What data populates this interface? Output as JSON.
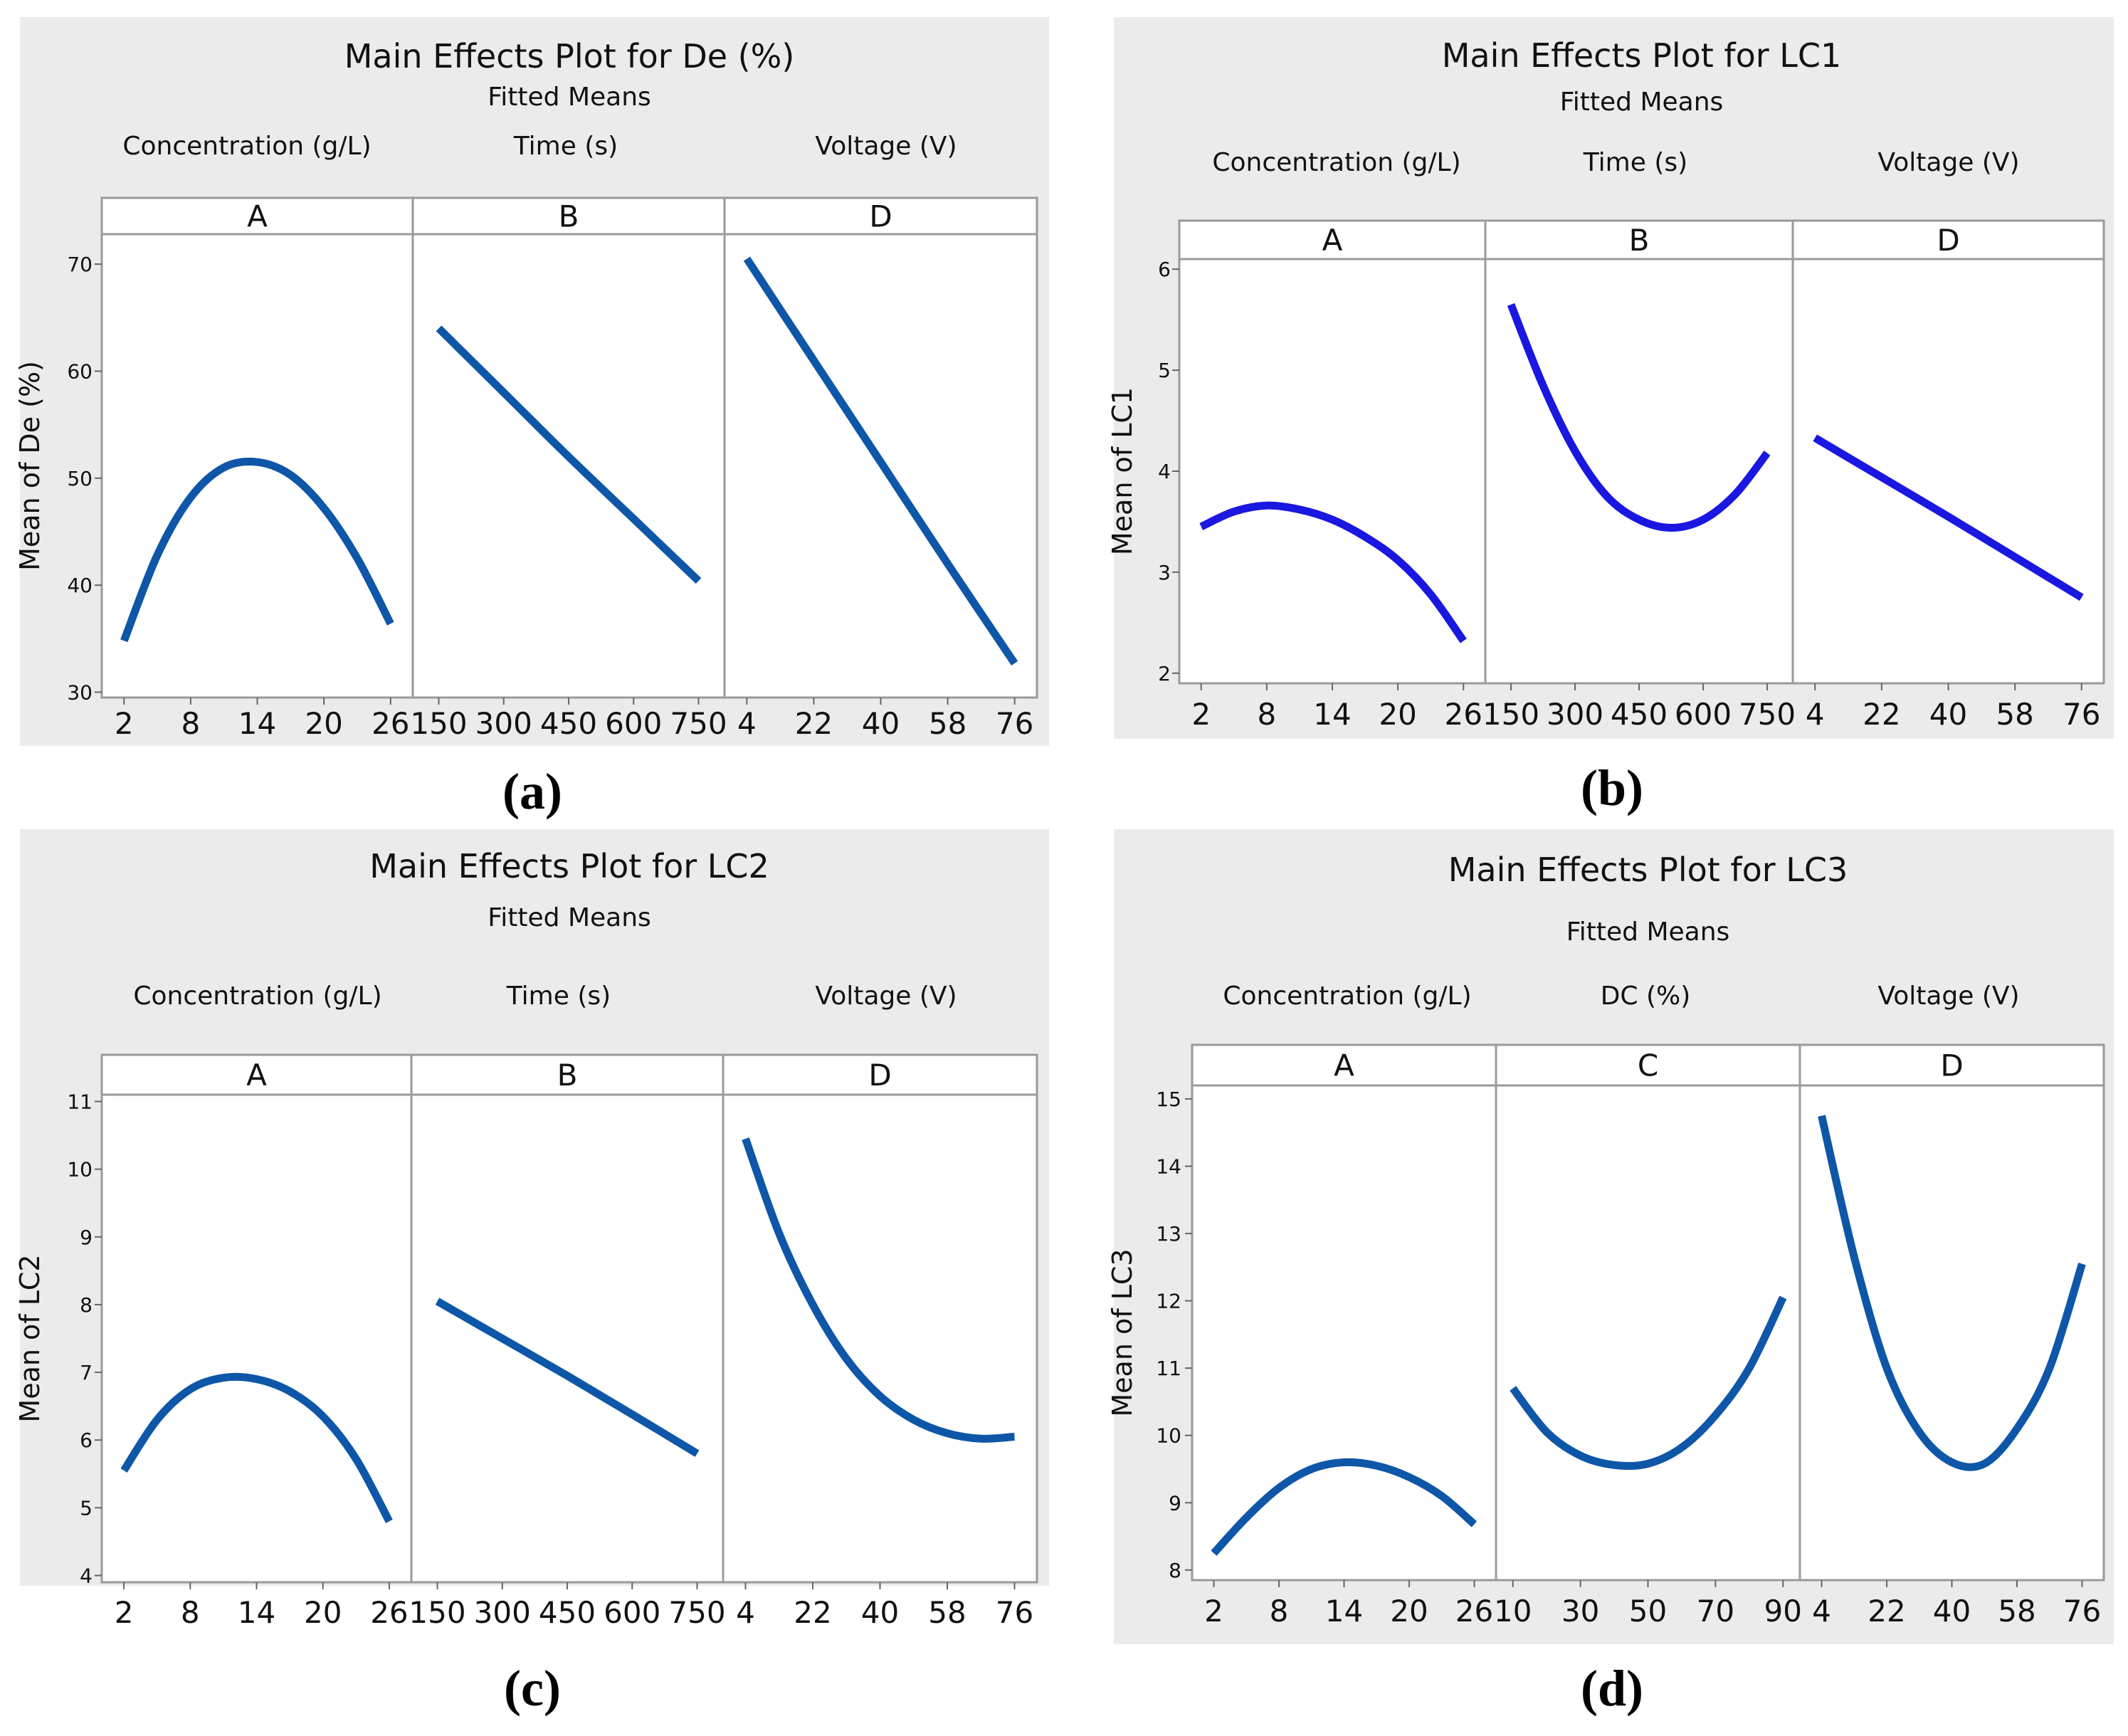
{
  "chart_data": [
    {
      "type": "line",
      "caption": "(a)",
      "title": "Main Effects Plot for De (%)",
      "subtitle": "Fitted Means",
      "ylabel": "Mean of De (%)",
      "ylim": [
        29.5,
        72.8
      ],
      "yticks": [
        30,
        40,
        50,
        60,
        70
      ],
      "facets": [
        {
          "label": "A",
          "factor": "Concentration (g/L)",
          "xlim": [
            0,
            28
          ],
          "xticks": [
            "2",
            "8",
            "14",
            "20",
            "26"
          ],
          "x": [
            2,
            5,
            8,
            11,
            14,
            17,
            20,
            23,
            26
          ],
          "y": [
            34.8,
            42.8,
            48.2,
            51.0,
            51.5,
            50.3,
            47.2,
            42.5,
            36.4
          ]
        },
        {
          "label": "B",
          "factor": "Time (s)",
          "xlim": [
            90,
            810
          ],
          "xticks": [
            "150",
            "300",
            "450",
            "600",
            "750"
          ],
          "x": [
            150,
            300,
            450,
            600,
            750
          ],
          "y": [
            64.0,
            58.0,
            52.0,
            46.2,
            40.4
          ]
        },
        {
          "label": "D",
          "factor": "Voltage (V)",
          "xlim": [
            -2,
            82
          ],
          "xticks": [
            "4",
            "22",
            "40",
            "58",
            "76"
          ],
          "x": [
            4,
            22,
            40,
            58,
            76
          ],
          "y": [
            70.5,
            61.0,
            51.5,
            42.0,
            32.7
          ]
        }
      ]
    },
    {
      "type": "line",
      "caption": "(b)",
      "title": "Main Effects Plot for LC1",
      "subtitle": "Fitted Means",
      "ylabel": "Mean of LC1",
      "ylim": [
        1.9,
        6.1
      ],
      "yticks": [
        2,
        3,
        4,
        5,
        6
      ],
      "facets": [
        {
          "label": "A",
          "factor": "Concentration (g/L)",
          "xlim": [
            0,
            28
          ],
          "xticks": [
            "2",
            "8",
            "14",
            "20",
            "26"
          ],
          "x": [
            2,
            5,
            8,
            11,
            14,
            17,
            20,
            23,
            26
          ],
          "y": [
            3.45,
            3.6,
            3.66,
            3.62,
            3.52,
            3.35,
            3.12,
            2.78,
            2.32
          ]
        },
        {
          "label": "B",
          "factor": "Time (s)",
          "xlim": [
            90,
            810
          ],
          "xticks": [
            "150",
            "300",
            "450",
            "600",
            "750"
          ],
          "x": [
            150,
            225,
            300,
            375,
            450,
            525,
            600,
            675,
            750
          ],
          "y": [
            5.65,
            4.85,
            4.2,
            3.75,
            3.52,
            3.44,
            3.52,
            3.77,
            4.18
          ]
        },
        {
          "label": "D",
          "factor": "Voltage (V)",
          "xlim": [
            -2,
            82
          ],
          "xticks": [
            "4",
            "22",
            "40",
            "58",
            "76"
          ],
          "x": [
            4,
            22,
            40,
            58,
            76
          ],
          "y": [
            4.33,
            3.94,
            3.55,
            3.15,
            2.75
          ]
        }
      ]
    },
    {
      "type": "line",
      "caption": "(c)",
      "title": "Main Effects Plot for LC2",
      "subtitle": "Fitted Means",
      "ylabel": "Mean of LC2",
      "ylim": [
        3.9,
        11.1
      ],
      "yticks": [
        4,
        5,
        6,
        7,
        8,
        9,
        10,
        11
      ],
      "facets": [
        {
          "label": "A",
          "factor": "Concentration (g/L)",
          "xlim": [
            0,
            28
          ],
          "xticks": [
            "2",
            "8",
            "14",
            "20",
            "26"
          ],
          "x": [
            2,
            5,
            8,
            11,
            14,
            17,
            20,
            23,
            26
          ],
          "y": [
            5.55,
            6.3,
            6.75,
            6.92,
            6.9,
            6.72,
            6.35,
            5.72,
            4.8
          ]
        },
        {
          "label": "B",
          "factor": "Time (s)",
          "xlim": [
            90,
            810
          ],
          "xticks": [
            "150",
            "300",
            "450",
            "600",
            "750"
          ],
          "x": [
            150,
            300,
            450,
            600,
            750
          ],
          "y": [
            8.05,
            7.5,
            6.95,
            6.38,
            5.8
          ]
        },
        {
          "label": "D",
          "factor": "Voltage (V)",
          "xlim": [
            -2,
            82
          ],
          "xticks": [
            "4",
            "22",
            "40",
            "58",
            "76"
          ],
          "x": [
            4,
            13,
            22,
            31,
            40,
            49,
            58,
            67,
            76
          ],
          "y": [
            10.45,
            9.05,
            8.0,
            7.2,
            6.65,
            6.3,
            6.1,
            6.02,
            6.05
          ]
        }
      ]
    },
    {
      "type": "line",
      "caption": "(d)",
      "title": "Main Effects Plot for LC3",
      "subtitle": "Fitted Means",
      "ylabel": "Mean of LC3",
      "ylim": [
        7.85,
        15.2
      ],
      "yticks": [
        8,
        9,
        10,
        11,
        12,
        13,
        14,
        15
      ],
      "facets": [
        {
          "label": "A",
          "factor": "Concentration (g/L)",
          "xlim": [
            0,
            28
          ],
          "xticks": [
            "2",
            "8",
            "14",
            "20",
            "26"
          ],
          "x": [
            2,
            5,
            8,
            11,
            14,
            17,
            20,
            23,
            26
          ],
          "y": [
            8.25,
            8.78,
            9.22,
            9.5,
            9.6,
            9.55,
            9.38,
            9.1,
            8.68
          ]
        },
        {
          "label": "C",
          "factor": "DC (%)",
          "xlim": [
            5,
            95
          ],
          "xticks": [
            "10",
            "30",
            "50",
            "70",
            "90"
          ],
          "x": [
            10,
            20,
            30,
            40,
            50,
            60,
            70,
            80,
            90
          ],
          "y": [
            10.7,
            10.05,
            9.7,
            9.56,
            9.58,
            9.82,
            10.3,
            11.0,
            12.05
          ]
        },
        {
          "label": "D",
          "factor": "Voltage (V)",
          "xlim": [
            -2,
            82
          ],
          "xticks": [
            "4",
            "22",
            "40",
            "58",
            "76"
          ],
          "x": [
            4,
            13,
            22,
            31,
            40,
            49,
            58,
            67,
            76
          ],
          "y": [
            14.75,
            12.65,
            11.0,
            10.05,
            9.6,
            9.58,
            10.1,
            11.0,
            12.55
          ]
        }
      ]
    }
  ]
}
